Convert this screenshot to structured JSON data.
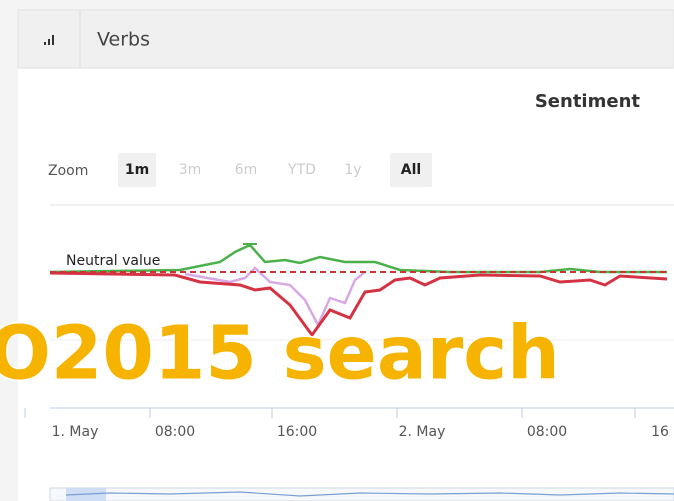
{
  "header": {
    "title": "Verbs"
  },
  "panel": {
    "title": "Sentiment",
    "zoom": {
      "label": "Zoom",
      "options": [
        "1m",
        "3m",
        "6m",
        "YTD",
        "1y",
        "All"
      ],
      "active": [
        "1m",
        "All"
      ]
    },
    "annotation": "Neutral value",
    "x_labels": [
      "1. May",
      "08:00",
      "16:00",
      "2. May",
      "08:00",
      "16"
    ]
  },
  "overlay": "O2015 search"
}
